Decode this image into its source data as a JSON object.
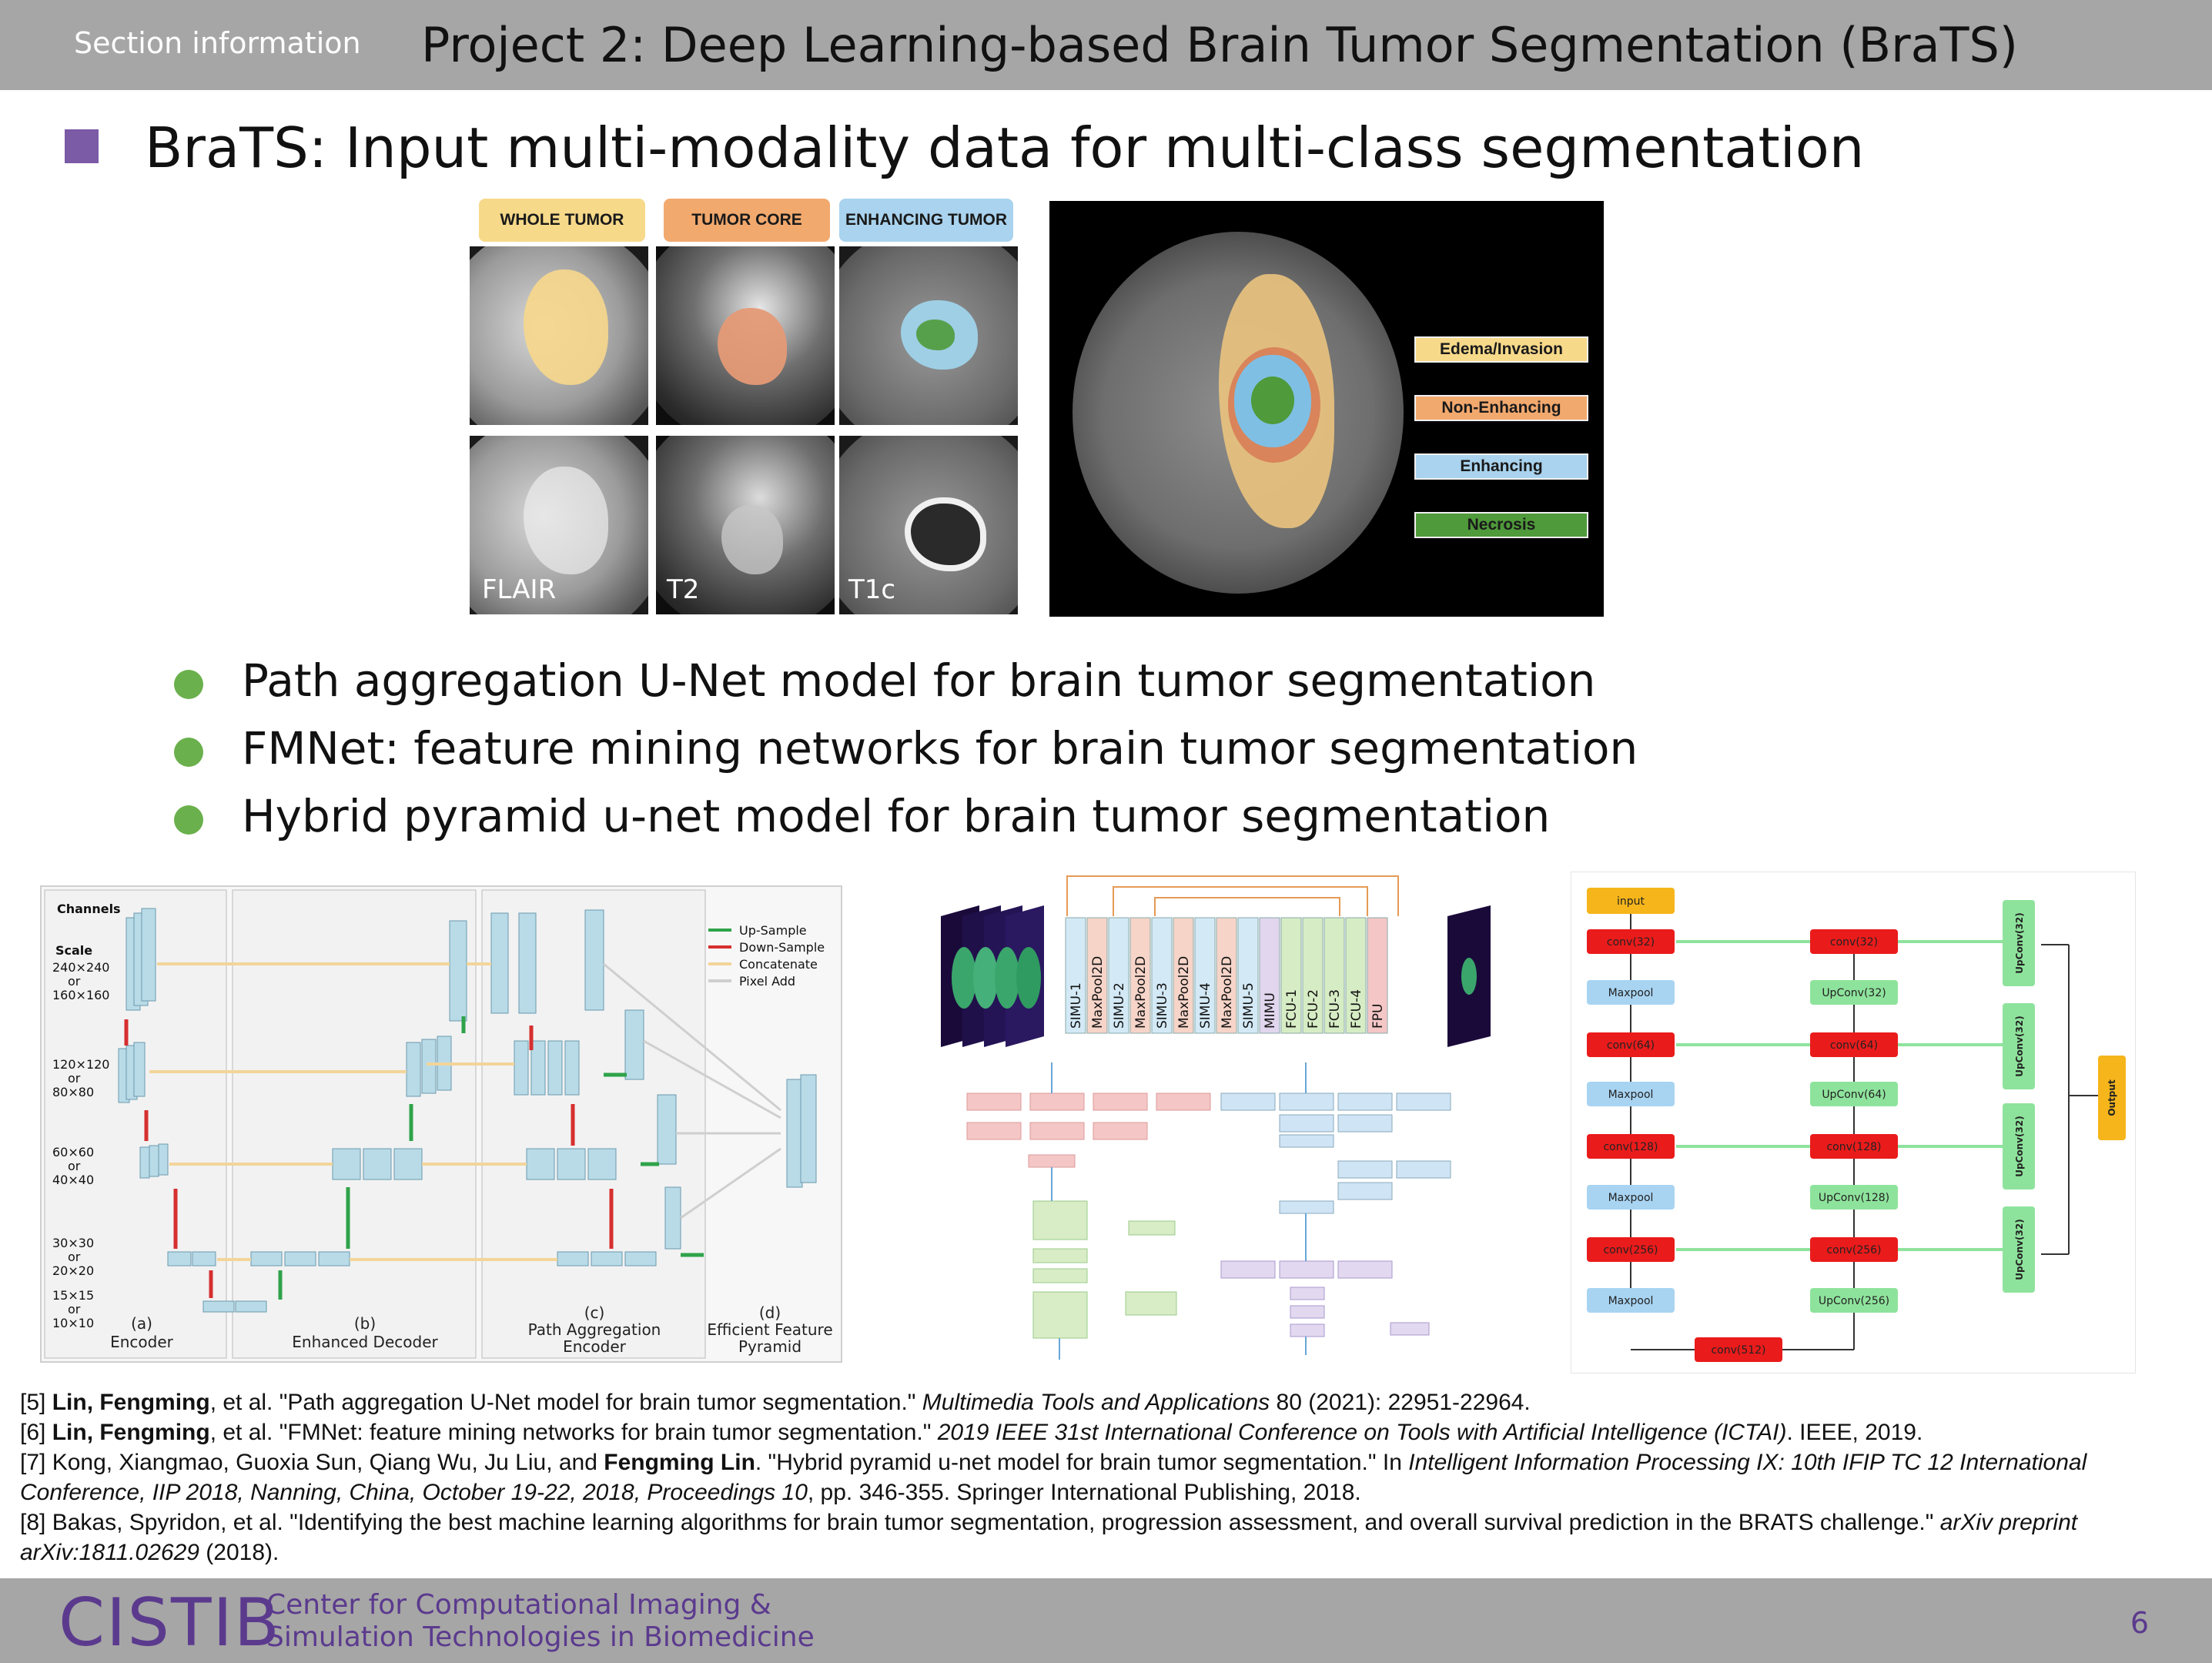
{
  "header": {
    "section_info": "Section information",
    "title": "Project 2: Deep Learning-based Brain Tumor Segmentation (BraTS)"
  },
  "main": {
    "heading": "BraTS: Input multi-modality data for multi-class segmentation"
  },
  "tumor_tags": [
    "WHOLE TUMOR",
    "TUMOR CORE",
    "ENHANCING TUMOR"
  ],
  "modalities": [
    "FLAIR",
    "T2",
    "T1c"
  ],
  "legend": [
    "Edema/Invasion",
    "Non-Enhancing",
    "Enhancing",
    "Necrosis"
  ],
  "colors": {
    "accent_purple": "#7b5aa6",
    "bullet_green": "#6ab04c",
    "whole_tumor": "#f7d98a",
    "tumor_core": "#f2a96e",
    "enhancing_tumor": "#a9d3ee",
    "necrosis": "#4f9a3a",
    "header_gray": "#a6a6a6",
    "logo_purple": "#5b3a8e"
  },
  "bullets": [
    "Path aggregation U-Net model for brain tumor segmentation",
    "FMNet: feature mining networks for brain tumor segmentation",
    "Hybrid pyramid u-net model for brain tumor segmentation"
  ],
  "fig1": {
    "channels_label": "Channels",
    "scale_label": "Scale",
    "legend": [
      "Up-Sample",
      "Down-Sample",
      "Concatenate",
      "Pixel Add"
    ],
    "captions": [
      "(a)",
      "Encoder",
      "(b)",
      "Enhanced Decoder",
      "(c)",
      "Path Aggregation",
      "Encoder",
      "(d)",
      "Efficient Feature",
      "Pyramid"
    ],
    "scales": [
      "240×240",
      "or",
      "160×160",
      "120×120",
      "or",
      "80×80",
      "60×60",
      "or",
      "40×40",
      "30×30",
      "or",
      "20×20",
      "15×15",
      "or",
      "10×10"
    ]
  },
  "fig2": {
    "blocks": [
      "SIMU-1",
      "MaxPool2D",
      "SIMU-2",
      "MaxPool2D",
      "SIMU-3",
      "MaxPool2D",
      "SIMU-4",
      "MaxPool2D",
      "SIMU-5",
      "MIMU",
      "FCU-1",
      "FCU-2",
      "FCU-3",
      "FCU-4",
      "FPU"
    ]
  },
  "fig3": {
    "input": "input",
    "left": [
      "conv(32)",
      "Maxpool",
      "conv(64)",
      "Maxpool",
      "conv(128)",
      "Maxpool",
      "conv(256)",
      "Maxpool"
    ],
    "bottom": "conv(512)",
    "right": [
      "conv(32)",
      "UpConv(32)",
      "conv(64)",
      "UpConv(64)",
      "conv(128)",
      "UpConv(128)",
      "conv(256)",
      "UpConv(256)"
    ],
    "side": [
      "UpConv(32)",
      "UpConv(32)",
      "UpConv(32)",
      "UpConv(32)"
    ],
    "output": "Output"
  },
  "references": [
    {
      "pre": "[5] ",
      "bold": "Lin, Fengming",
      "mid": ", et al. \"Path aggregation U-Net model for brain tumor segmentation.\" ",
      "ital": "Multimedia Tools and Applications",
      "post": " 80 (2021): 22951-22964."
    },
    {
      "pre": "[6] ",
      "bold": "Lin, Fengming",
      "mid": ", et al. \"FMNet: feature mining networks for brain tumor segmentation.\" ",
      "ital": "2019 IEEE 31st International Conference on Tools with Artificial Intelligence (ICTAI)",
      "post": ". IEEE, 2019."
    },
    {
      "pre": "[7] Kong, Xiangmao, Guoxia Sun, Qiang Wu, Ju Liu, and ",
      "bold": "Fengming Lin",
      "mid": ". \"Hybrid pyramid u-net model for brain tumor segmentation.\" In ",
      "ital": "Intelligent Information Processing IX: 10th IFIP TC 12 International Conference, IIP 2018, Nanning, China, October 19-22, 2018, Proceedings 10",
      "post": ", pp. 346-355. Springer International Publishing, 2018."
    },
    {
      "pre": "[8] Bakas, Spyridon, et al. \"Identifying the best machine learning algorithms for brain tumor segmentation, progression assessment, and overall survival prediction in the BRATS challenge.\" ",
      "bold": "",
      "mid": "",
      "ital": "arXiv preprint arXiv:1811.02629",
      "post": " (2018)."
    }
  ],
  "footer": {
    "logo": "CISTIB",
    "logo_line1": "Center for Computational Imaging &",
    "logo_line2": "Simulation Technologies in Biomedicine",
    "page_number": "6"
  }
}
